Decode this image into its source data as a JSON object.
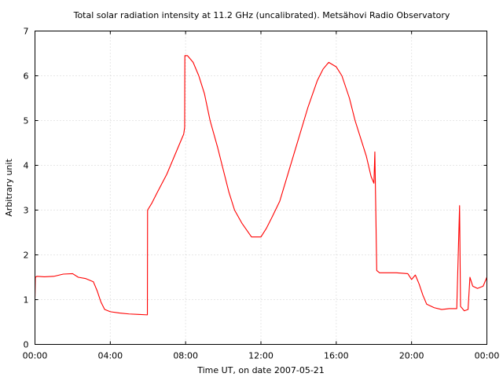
{
  "chart_data": {
    "type": "line",
    "title": "Total solar radiation intensity at 11.2 GHz (uncalibrated). Metsähovi Radio Observatory",
    "xlabel": "Time UT, on date 2007-05-21",
    "ylabel": "Arbitrary unit",
    "xlim": [
      0,
      24
    ],
    "ylim": [
      0,
      7
    ],
    "x_unit": "hours UT",
    "x_tick_values": [
      0,
      4,
      8,
      12,
      16,
      20,
      24
    ],
    "x_tick_labels": [
      "00:00",
      "04:00",
      "08:00",
      "12:00",
      "16:00",
      "20:00",
      "00:00"
    ],
    "y_ticks": [
      0,
      1,
      2,
      3,
      4,
      5,
      6,
      7
    ],
    "y_tick_labels": [
      "0",
      "1",
      "2",
      "3",
      "4",
      "5",
      "6",
      "7"
    ],
    "grid": true,
    "series_color": "#ff0000",
    "series": [
      {
        "points": [
          [
            0.0,
            1.05
          ],
          [
            0.02,
            1.5
          ],
          [
            0.1,
            1.52
          ],
          [
            0.5,
            1.51
          ],
          [
            1.0,
            1.52
          ],
          [
            1.5,
            1.57
          ],
          [
            2.0,
            1.58
          ],
          [
            2.3,
            1.5
          ],
          [
            2.7,
            1.47
          ],
          [
            3.1,
            1.4
          ],
          [
            3.3,
            1.2
          ],
          [
            3.5,
            0.95
          ],
          [
            3.7,
            0.78
          ],
          [
            4.0,
            0.73
          ],
          [
            4.5,
            0.7
          ],
          [
            5.0,
            0.68
          ],
          [
            5.5,
            0.67
          ],
          [
            5.97,
            0.66
          ],
          [
            5.98,
            3.0
          ],
          [
            6.2,
            3.15
          ],
          [
            6.5,
            3.4
          ],
          [
            7.0,
            3.8
          ],
          [
            7.5,
            4.3
          ],
          [
            7.9,
            4.7
          ],
          [
            7.95,
            4.85
          ],
          [
            7.96,
            6.45
          ],
          [
            8.1,
            6.45
          ],
          [
            8.4,
            6.3
          ],
          [
            8.7,
            6.0
          ],
          [
            9.0,
            5.6
          ],
          [
            9.3,
            5.0
          ],
          [
            9.7,
            4.4
          ],
          [
            10.0,
            3.9
          ],
          [
            10.3,
            3.4
          ],
          [
            10.6,
            3.0
          ],
          [
            11.0,
            2.7
          ],
          [
            11.5,
            2.4
          ],
          [
            12.0,
            2.4
          ],
          [
            12.3,
            2.6
          ],
          [
            12.6,
            2.85
          ],
          [
            13.0,
            3.2
          ],
          [
            13.5,
            3.9
          ],
          [
            14.0,
            4.6
          ],
          [
            14.5,
            5.3
          ],
          [
            15.0,
            5.9
          ],
          [
            15.3,
            6.15
          ],
          [
            15.6,
            6.3
          ],
          [
            16.0,
            6.2
          ],
          [
            16.3,
            6.0
          ],
          [
            16.7,
            5.5
          ],
          [
            17.0,
            5.0
          ],
          [
            17.3,
            4.6
          ],
          [
            17.6,
            4.2
          ],
          [
            17.85,
            3.75
          ],
          [
            18.0,
            3.6
          ],
          [
            18.05,
            4.3
          ],
          [
            18.1,
            3.0
          ],
          [
            18.15,
            1.65
          ],
          [
            18.3,
            1.6
          ],
          [
            18.7,
            1.6
          ],
          [
            19.2,
            1.6
          ],
          [
            19.8,
            1.58
          ],
          [
            20.0,
            1.45
          ],
          [
            20.2,
            1.55
          ],
          [
            20.4,
            1.35
          ],
          [
            20.6,
            1.1
          ],
          [
            20.8,
            0.9
          ],
          [
            21.2,
            0.82
          ],
          [
            21.6,
            0.78
          ],
          [
            22.0,
            0.8
          ],
          [
            22.4,
            0.8
          ],
          [
            22.55,
            3.1
          ],
          [
            22.6,
            0.85
          ],
          [
            22.8,
            0.75
          ],
          [
            23.0,
            0.78
          ],
          [
            23.1,
            1.5
          ],
          [
            23.25,
            1.3
          ],
          [
            23.5,
            1.25
          ],
          [
            23.8,
            1.3
          ],
          [
            24.0,
            1.5
          ]
        ]
      }
    ]
  }
}
